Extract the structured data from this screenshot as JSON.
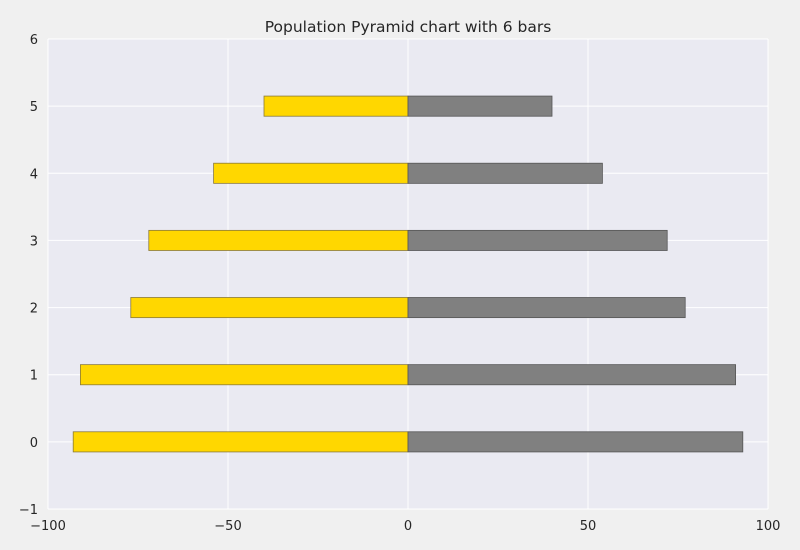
{
  "chart_data": {
    "type": "bar",
    "orientation": "horizontal",
    "title": "Population Pyramid chart with 6 bars",
    "xlabel": "",
    "ylabel": "",
    "categories": [
      0,
      1,
      2,
      3,
      4,
      5
    ],
    "series": [
      {
        "values": [
          -93,
          -91,
          -77,
          -72,
          -54,
          -40
        ],
        "color": "#FFD700"
      },
      {
        "values": [
          93,
          91,
          77,
          72,
          54,
          40
        ],
        "color": "#808080"
      }
    ],
    "xlim": [
      -100,
      100
    ],
    "ylim": [
      -1,
      6
    ],
    "xticks": [
      -100,
      -50,
      0,
      50,
      100
    ],
    "yticks": [
      -1,
      0,
      1,
      2,
      3,
      4,
      5,
      6
    ],
    "bar_height": 0.3,
    "grid": true,
    "colors": {
      "axes_background": "#EAEAF2",
      "figure_background": "#F0F0F0",
      "grid": "#FFFFFF"
    }
  }
}
